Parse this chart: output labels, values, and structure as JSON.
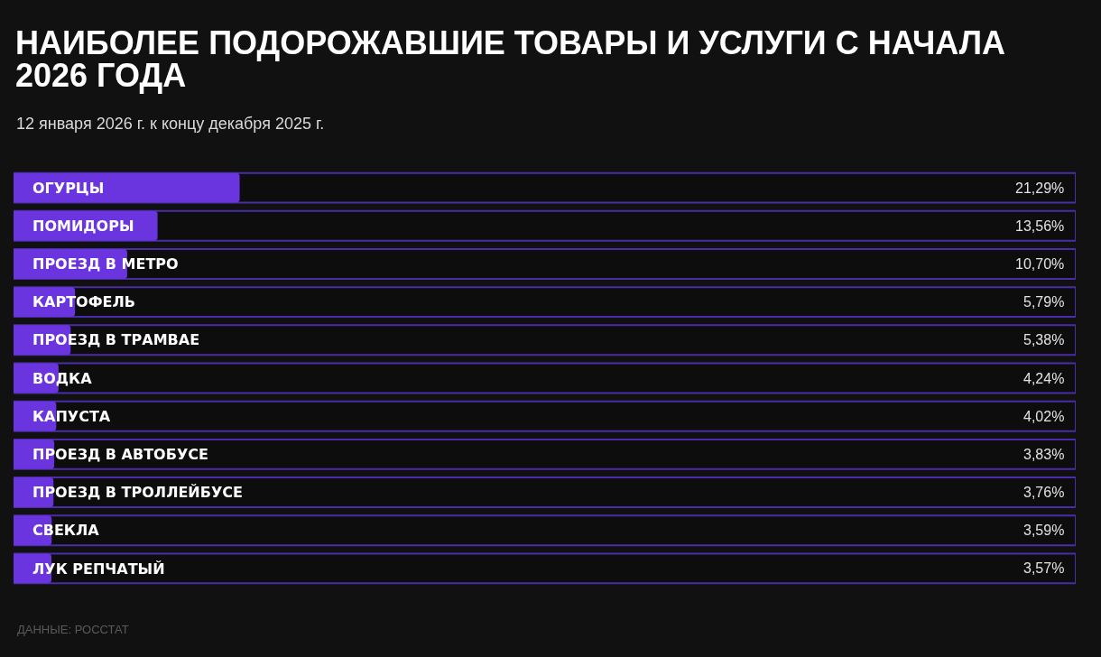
{
  "chart_data": {
    "type": "bar",
    "orientation": "horizontal",
    "title": "НАИБОЛЕЕ ПОДОРОЖАВШИЕ ТОВАРЫ И УСЛУГИ С НАЧАЛА 2026 ГОДА",
    "subtitle": "12 января 2026 г. к концу декабря 2025 г.",
    "categories": [
      "ОГУРЦЫ",
      "ПОМИДОРЫ",
      "ПРОЕЗД В МЕТРО",
      "КАРТОФЕЛЬ",
      "ПРОЕЗД В ТРАМВАЕ",
      "ВОДКА",
      "КАПУСТА",
      "ПРОЕЗД В АВТОБУСЕ",
      "ПРОЕЗД В ТРОЛЛЕЙБУСЕ",
      "СВЕКЛА",
      "ЛУК РЕПЧАТЫЙ"
    ],
    "values": [
      21.29,
      13.56,
      10.7,
      5.79,
      5.38,
      4.24,
      4.02,
      3.83,
      3.76,
      3.59,
      3.57
    ],
    "value_labels": [
      "21,29%",
      "13,56%",
      "10,70%",
      "5,79%",
      "5,38%",
      "4,24%",
      "4,02%",
      "3,83%",
      "3,76%",
      "3,59%",
      "3,57%"
    ],
    "color": "#6a34de",
    "xlim": [
      0,
      100
    ],
    "tick_labels": "y",
    "annotations": [
      "ДАННЫЕ: РОССТАТ"
    ]
  }
}
